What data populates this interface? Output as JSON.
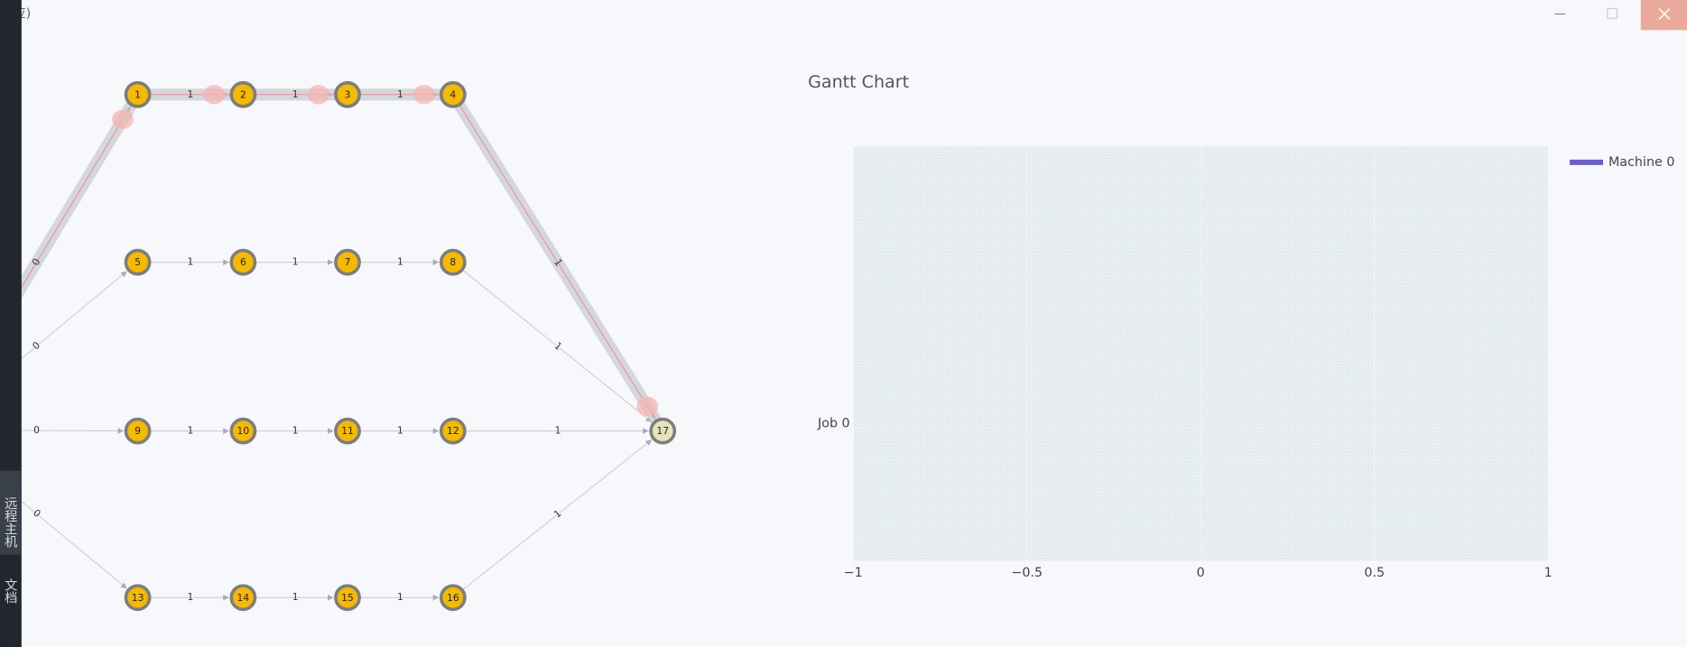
{
  "header": {
    "title": "响应)"
  },
  "sidebar": {
    "tabs": [
      "远程主机",
      "文档"
    ]
  },
  "graph": {
    "nodes": [
      "1",
      "2",
      "3",
      "4",
      "5",
      "6",
      "7",
      "8",
      "9",
      "10",
      "11",
      "12",
      "13",
      "14",
      "15",
      "16",
      "17"
    ],
    "edges": [
      {
        "to": "1",
        "label": "0",
        "highlight": true
      },
      {
        "to": "5",
        "label": "0"
      },
      {
        "to": "9",
        "label": "0"
      },
      {
        "to": "13",
        "label": "0"
      },
      {
        "from": "1",
        "to": "2",
        "label": "1",
        "highlight": true
      },
      {
        "from": "2",
        "to": "3",
        "label": "1",
        "highlight": true
      },
      {
        "from": "3",
        "to": "4",
        "label": "1",
        "highlight": true
      },
      {
        "from": "4",
        "to": "17",
        "label": "1",
        "highlight": true
      },
      {
        "from": "5",
        "to": "6",
        "label": "1"
      },
      {
        "from": "6",
        "to": "7",
        "label": "1"
      },
      {
        "from": "7",
        "to": "8",
        "label": "1"
      },
      {
        "from": "8",
        "to": "17",
        "label": "1"
      },
      {
        "from": "9",
        "to": "10",
        "label": "1"
      },
      {
        "from": "10",
        "to": "11",
        "label": "1"
      },
      {
        "from": "11",
        "to": "12",
        "label": "1"
      },
      {
        "from": "12",
        "to": "17",
        "label": "1"
      },
      {
        "from": "13",
        "to": "14",
        "label": "1"
      },
      {
        "from": "14",
        "to": "15",
        "label": "1"
      },
      {
        "from": "15",
        "to": "16",
        "label": "1"
      },
      {
        "from": "16",
        "to": "17",
        "label": "1"
      }
    ]
  },
  "chart_data": {
    "type": "gantt",
    "title": "Gantt Chart",
    "categories": [
      "Job 0"
    ],
    "series": [
      {
        "name": "Machine 0",
        "color": "#6b5fc7"
      }
    ],
    "xlim": [
      -1,
      1
    ],
    "xticks": [
      {
        "value": -1,
        "label": "−1"
      },
      {
        "value": -0.5,
        "label": "−0.5"
      },
      0,
      0.5,
      1
    ]
  }
}
